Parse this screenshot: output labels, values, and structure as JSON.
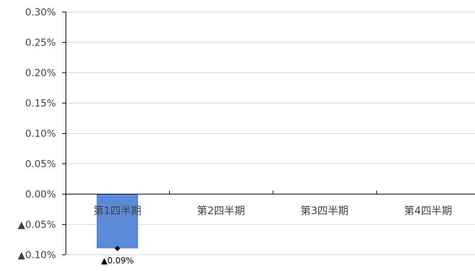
{
  "chart_data": {
    "type": "bar",
    "categories": [
      "第1四半期",
      "第2四半期",
      "第3四半期",
      "第4四半期"
    ],
    "series": [
      {
        "values": [
          -0.09,
          null,
          null,
          null
        ],
        "color": "#5B8BD8"
      }
    ],
    "data_labels": [
      "▲0.09%",
      "",
      "",
      ""
    ],
    "marker": {
      "category_index": 0,
      "value": -0.09,
      "shape": "diamond",
      "color": "#000000"
    },
    "y_ticks": [
      0.3,
      0.25,
      0.2,
      0.15,
      0.1,
      0.05,
      0.0,
      -0.05,
      -0.1
    ],
    "y_tick_labels": [
      "0.30%",
      "0.25%",
      "0.20%",
      "0.15%",
      "0.10%",
      "0.05%",
      "0.00%",
      "▲0.05%",
      "▲0.10%"
    ],
    "ylim": [
      -0.1,
      0.3
    ],
    "grid": true,
    "grid_color": "#D9D9D9",
    "axis_color": "#000000",
    "title": "",
    "xlabel": "",
    "ylabel": ""
  }
}
